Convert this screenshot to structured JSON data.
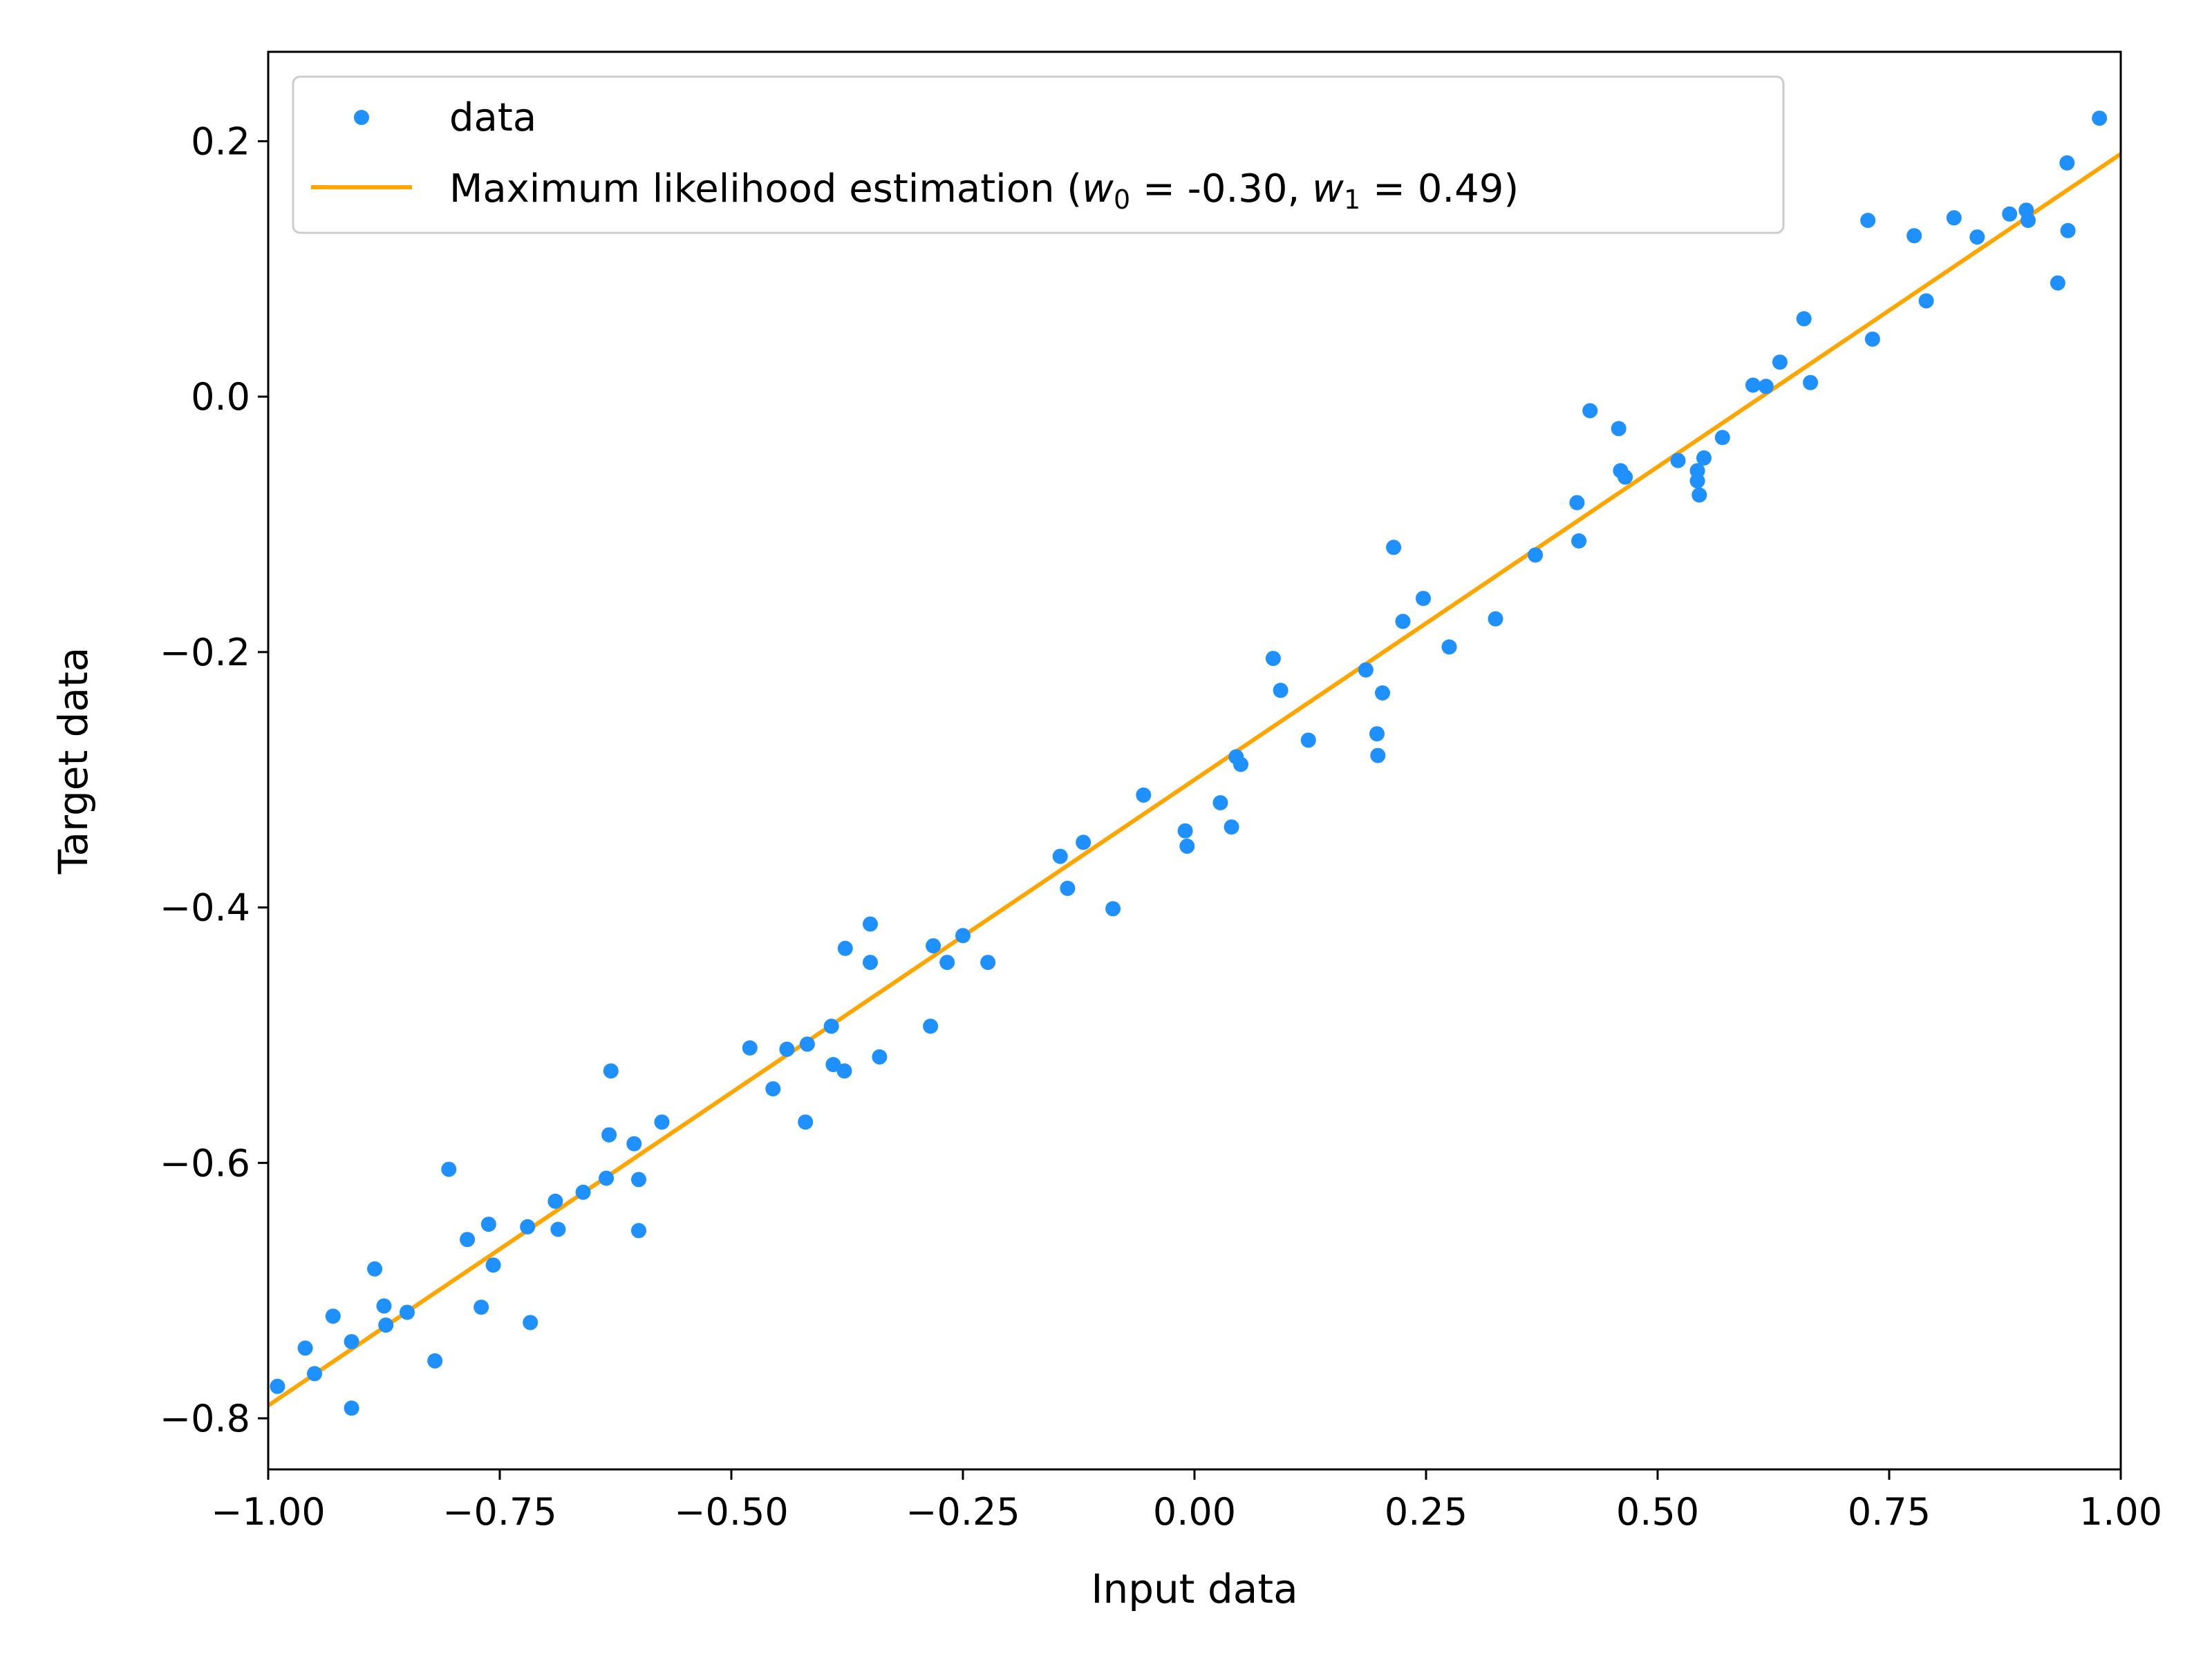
{
  "chart_data": {
    "type": "scatter",
    "xlabel": "Input data",
    "ylabel": "Target data",
    "xlim": [
      -1.0,
      1.0
    ],
    "ylim": [
      -0.84,
      0.27
    ],
    "grid": false,
    "legend_position": "top-left",
    "x_ticks": [
      -1.0,
      -0.75,
      -0.5,
      -0.25,
      0.0,
      0.25,
      0.5,
      0.75,
      1.0
    ],
    "x_tick_labels": [
      "−1.00",
      "−0.75",
      "−0.50",
      "−0.25",
      "0.00",
      "0.25",
      "0.50",
      "0.75",
      "1.00"
    ],
    "y_ticks": [
      -0.8,
      -0.6,
      -0.4,
      -0.2,
      0.0,
      0.2
    ],
    "y_tick_labels": [
      "−0.8",
      "−0.6",
      "−0.4",
      "−0.2",
      "0.0",
      "0.2"
    ],
    "series": [
      {
        "name": "data",
        "kind": "scatter",
        "color": "#1e90ff",
        "points": [
          [
            -0.99,
            -0.775
          ],
          [
            -0.96,
            -0.745
          ],
          [
            -0.95,
            -0.765
          ],
          [
            -0.93,
            -0.72
          ],
          [
            -0.91,
            -0.74
          ],
          [
            -0.91,
            -0.792
          ],
          [
            -0.885,
            -0.683
          ],
          [
            -0.875,
            -0.712
          ],
          [
            -0.873,
            -0.727
          ],
          [
            -0.85,
            -0.717
          ],
          [
            -0.82,
            -0.755
          ],
          [
            -0.805,
            -0.605
          ],
          [
            -0.785,
            -0.66
          ],
          [
            -0.77,
            -0.713
          ],
          [
            -0.762,
            -0.648
          ],
          [
            -0.757,
            -0.68
          ],
          [
            -0.72,
            -0.65
          ],
          [
            -0.717,
            -0.725
          ],
          [
            -0.69,
            -0.63
          ],
          [
            -0.687,
            -0.652
          ],
          [
            -0.66,
            -0.623
          ],
          [
            -0.635,
            -0.612
          ],
          [
            -0.632,
            -0.578
          ],
          [
            -0.63,
            -0.528
          ],
          [
            -0.605,
            -0.585
          ],
          [
            -0.6,
            -0.653
          ],
          [
            -0.6,
            -0.613
          ],
          [
            -0.575,
            -0.568
          ],
          [
            -0.48,
            -0.51
          ],
          [
            -0.455,
            -0.542
          ],
          [
            -0.44,
            -0.511
          ],
          [
            -0.42,
            -0.568
          ],
          [
            -0.418,
            -0.507
          ],
          [
            -0.392,
            -0.493
          ],
          [
            -0.39,
            -0.523
          ],
          [
            -0.378,
            -0.528
          ],
          [
            -0.377,
            -0.432
          ],
          [
            -0.35,
            -0.413
          ],
          [
            -0.35,
            -0.443
          ],
          [
            -0.34,
            -0.517
          ],
          [
            -0.285,
            -0.493
          ],
          [
            -0.282,
            -0.43
          ],
          [
            -0.267,
            -0.443
          ],
          [
            -0.25,
            -0.422
          ],
          [
            -0.223,
            -0.443
          ],
          [
            -0.145,
            -0.36
          ],
          [
            -0.137,
            -0.385
          ],
          [
            -0.12,
            -0.349
          ],
          [
            -0.088,
            -0.401
          ],
          [
            -0.055,
            -0.312
          ],
          [
            -0.01,
            -0.34
          ],
          [
            -0.008,
            -0.352
          ],
          [
            0.028,
            -0.318
          ],
          [
            0.04,
            -0.337
          ],
          [
            0.045,
            -0.282
          ],
          [
            0.05,
            -0.288
          ],
          [
            0.085,
            -0.205
          ],
          [
            0.093,
            -0.23
          ],
          [
            0.123,
            -0.269
          ],
          [
            0.185,
            -0.214
          ],
          [
            0.197,
            -0.264
          ],
          [
            0.198,
            -0.281
          ],
          [
            0.203,
            -0.232
          ],
          [
            0.215,
            -0.118
          ],
          [
            0.225,
            -0.176
          ],
          [
            0.247,
            -0.158
          ],
          [
            0.275,
            -0.196
          ],
          [
            0.325,
            -0.174
          ],
          [
            0.368,
            -0.124
          ],
          [
            0.413,
            -0.083
          ],
          [
            0.415,
            -0.113
          ],
          [
            0.427,
            -0.011
          ],
          [
            0.458,
            -0.025
          ],
          [
            0.46,
            -0.058
          ],
          [
            0.465,
            -0.063
          ],
          [
            0.522,
            -0.05
          ],
          [
            0.543,
            -0.058
          ],
          [
            0.543,
            -0.066
          ],
          [
            0.545,
            -0.077
          ],
          [
            0.55,
            -0.048
          ],
          [
            0.57,
            -0.032
          ],
          [
            0.603,
            0.009
          ],
          [
            0.617,
            0.008
          ],
          [
            0.632,
            0.027
          ],
          [
            0.658,
            0.061
          ],
          [
            0.665,
            0.011
          ],
          [
            0.727,
            0.138
          ],
          [
            0.732,
            0.045
          ],
          [
            0.777,
            0.126
          ],
          [
            0.79,
            0.075
          ],
          [
            0.82,
            0.14
          ],
          [
            0.845,
            0.125
          ],
          [
            0.88,
            0.143
          ],
          [
            0.898,
            0.146
          ],
          [
            0.9,
            0.138
          ],
          [
            0.932,
            0.089
          ],
          [
            0.942,
            0.183
          ],
          [
            0.943,
            0.13
          ],
          [
            0.977,
            0.218
          ]
        ]
      },
      {
        "name_prefix": "Maximum likelihood estimation (",
        "w0_symbol": "w",
        "w0_sub": "0",
        "w0_value": " = -0.30, ",
        "w1_symbol": "w",
        "w1_sub": "1",
        "w1_value": " = 0.49)",
        "kind": "line",
        "color": "#ffa500",
        "w0": -0.3,
        "w1": 0.49
      }
    ]
  }
}
